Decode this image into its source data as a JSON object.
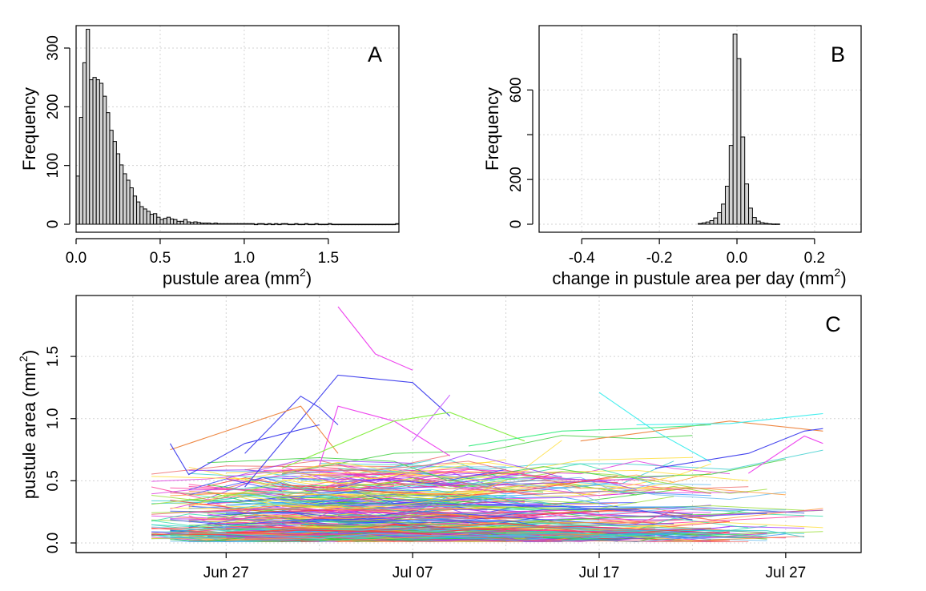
{
  "chart_data": [
    {
      "panel_label": "A",
      "type": "bar",
      "xlabel": "pustule area (mm",
      "xlabel_sup": "2",
      "xlabel_end": ")",
      "ylabel": "Frequency",
      "xlim": [
        0,
        1.92
      ],
      "ylim": [
        0,
        330
      ],
      "xticks": [
        0.0,
        0.5,
        1.0,
        1.5
      ],
      "xtick_labels": [
        "0.0",
        "0.5",
        "1.0",
        "1.5"
      ],
      "yticks": [
        0,
        100,
        200,
        300
      ],
      "ytick_labels": [
        "0",
        "100",
        "200",
        "300"
      ],
      "grid": true,
      "bin_start": 0,
      "bin_width": 0.02,
      "values": [
        82,
        182,
        275,
        332,
        246,
        250,
        246,
        240,
        218,
        190,
        160,
        141,
        120,
        101,
        86,
        75,
        62,
        48,
        38,
        30,
        26,
        22,
        17,
        18,
        12,
        8,
        10,
        12,
        9,
        8,
        5,
        5,
        8,
        4,
        3,
        4,
        3,
        2,
        2,
        2,
        1,
        2,
        1,
        1,
        1,
        1,
        1,
        1,
        1,
        1,
        1,
        1,
        1,
        0,
        1,
        1,
        0,
        1,
        0,
        1,
        0,
        1,
        1,
        0,
        0,
        1,
        0,
        0,
        1,
        0,
        0,
        1,
        0,
        0,
        0,
        1,
        0,
        0,
        0,
        0,
        0,
        0,
        0,
        0,
        0,
        0,
        0,
        0,
        0,
        0,
        0,
        0,
        0,
        0,
        0,
        1
      ]
    },
    {
      "panel_label": "B",
      "type": "bar",
      "xlabel": "change in pustule area per day (mm",
      "xlabel_sup": "2",
      "xlabel_end": ")",
      "ylabel": "Frequency",
      "xlim": [
        -0.51,
        0.32
      ],
      "ylim": [
        0,
        850
      ],
      "xticks": [
        -0.4,
        -0.2,
        0.0,
        0.2
      ],
      "xtick_labels": [
        "-0.4",
        "-0.2",
        "0.0",
        "0.2"
      ],
      "yticks": [
        0,
        200,
        400,
        600
      ],
      "ytick_labels": [
        "0",
        "200",
        "",
        "600"
      ],
      "grid": true,
      "bin_start": -0.1,
      "bin_width": 0.01,
      "values": [
        3,
        6,
        10,
        16,
        28,
        52,
        90,
        170,
        352,
        850,
        740,
        390,
        180,
        72,
        30,
        14,
        7,
        4,
        2,
        1,
        1
      ]
    },
    {
      "panel_label": "C",
      "type": "line",
      "ylabel": "pustule area (mm",
      "ylabel_sup": "2",
      "ylabel_end": ")",
      "x_axis": "date",
      "xlim": [
        "Jun 19",
        "Jul 31"
      ],
      "ylim": [
        0,
        1.9
      ],
      "xticks": [
        "Jun 27",
        "Jul 07",
        "Jul 17",
        "Jul 27"
      ],
      "xtick_labels": [
        "Jun 27",
        "Jul 07",
        "Jul 17",
        "Jul 27"
      ],
      "yticks": [
        0.0,
        0.5,
        1.0,
        1.5
      ],
      "ytick_labels": [
        "0.0",
        "0.5",
        "1.0",
        "1.5"
      ],
      "grid": true,
      "series_note": "hundreds of unlabeled per-pustule trajectories",
      "highlighted_series": [
        {
          "color": "#ee44ee",
          "points": [
            [
              "Jul 03",
              1.9
            ],
            [
              "Jul 05",
              1.52
            ],
            [
              "Jul 07",
              1.39
            ]
          ]
        },
        {
          "color": "#4444ee",
          "points": [
            [
              "Jun 28",
              0.45
            ],
            [
              "Jul 03",
              1.35
            ],
            [
              "Jul 07",
              1.29
            ],
            [
              "Jul 09",
              1.02
            ]
          ]
        },
        {
          "color": "#4444ee",
          "points": [
            [
              "Jun 28",
              0.72
            ],
            [
              "Jul 01",
              1.18
            ],
            [
              "Jul 02",
              1.09
            ],
            [
              "Jul 03",
              0.95
            ]
          ]
        },
        {
          "color": "#ee44ee",
          "points": [
            [
              "Jul 02",
              0.62
            ],
            [
              "Jul 03",
              1.1
            ],
            [
              "Jul 06",
              0.98
            ],
            [
              "Jul 09",
              0.7
            ]
          ]
        },
        {
          "color": "#cc66ff",
          "points": [
            [
              "Jul 07",
              0.82
            ],
            [
              "Jul 09",
              1.19
            ]
          ]
        },
        {
          "color": "#ee8844",
          "points": [
            [
              "Jun 24",
              0.75
            ],
            [
              "Jul 01",
              1.1
            ],
            [
              "Jul 03",
              0.72
            ]
          ]
        },
        {
          "color": "#88ee44",
          "points": [
            [
              "Jun 30",
              0.6
            ],
            [
              "Jul 06",
              0.98
            ],
            [
              "Jul 09",
              1.05
            ],
            [
              "Jul 13",
              0.82
            ]
          ]
        },
        {
          "color": "#44eeee",
          "points": [
            [
              "Jul 17",
              1.21
            ],
            [
              "Jul 20",
              0.9
            ],
            [
              "Jul 23",
              0.65
            ]
          ]
        },
        {
          "color": "#ee8844",
          "points": [
            [
              "Jul 16",
              0.82
            ],
            [
              "Jul 24",
              0.98
            ],
            [
              "Jul 29",
              0.9
            ]
          ]
        },
        {
          "color": "#44eeee",
          "points": [
            [
              "Jul 19",
              0.95
            ],
            [
              "Jul 24",
              0.96
            ],
            [
              "Jul 29",
              1.04
            ]
          ]
        },
        {
          "color": "#4444ee",
          "points": [
            [
              "Jul 20",
              0.6
            ],
            [
              "Jul 25",
              0.72
            ],
            [
              "Jul 28",
              0.9
            ],
            [
              "Jul 29",
              0.92
            ]
          ]
        },
        {
          "color": "#ee44ee",
          "points": [
            [
              "Jul 25",
              0.56
            ],
            [
              "Jul 28",
              0.86
            ],
            [
              "Jul 29",
              0.8
            ]
          ]
        },
        {
          "color": "#4444ee",
          "points": [
            [
              "Jun 24",
              0.8
            ],
            [
              "Jun 25",
              0.55
            ],
            [
              "Jun 28",
              0.8
            ],
            [
              "Jul 02",
              0.95
            ]
          ]
        },
        {
          "color": "#44ee88",
          "points": [
            [
              "Jul 10",
              0.78
            ],
            [
              "Jul 15",
              0.9
            ],
            [
              "Jul 19",
              0.92
            ],
            [
              "Jul 23",
              0.95
            ]
          ]
        }
      ],
      "colors": [
        "#ff3333",
        "#ff9933",
        "#ffdd33",
        "#99dd33",
        "#33cc33",
        "#33ddaa",
        "#33cccc",
        "#3399ff",
        "#3344ff",
        "#9933ff",
        "#dd33dd",
        "#ff3399",
        "#ee6666",
        "#66bbee"
      ]
    }
  ],
  "panels": {
    "a": {
      "label": "A",
      "ylabel": "Frequency",
      "xlabel": "pustule area (mm",
      "xlabel_sup": "2",
      "xlabel_end": ")"
    },
    "b": {
      "label": "B",
      "ylabel": "Frequency",
      "xlabel": "change in pustule area per day (mm",
      "xlabel_sup": "2",
      "xlabel_end": ")"
    },
    "c": {
      "label": "C",
      "ylabel": "pustule area (mm",
      "ylabel_sup": "2",
      "ylabel_end": ")"
    }
  }
}
